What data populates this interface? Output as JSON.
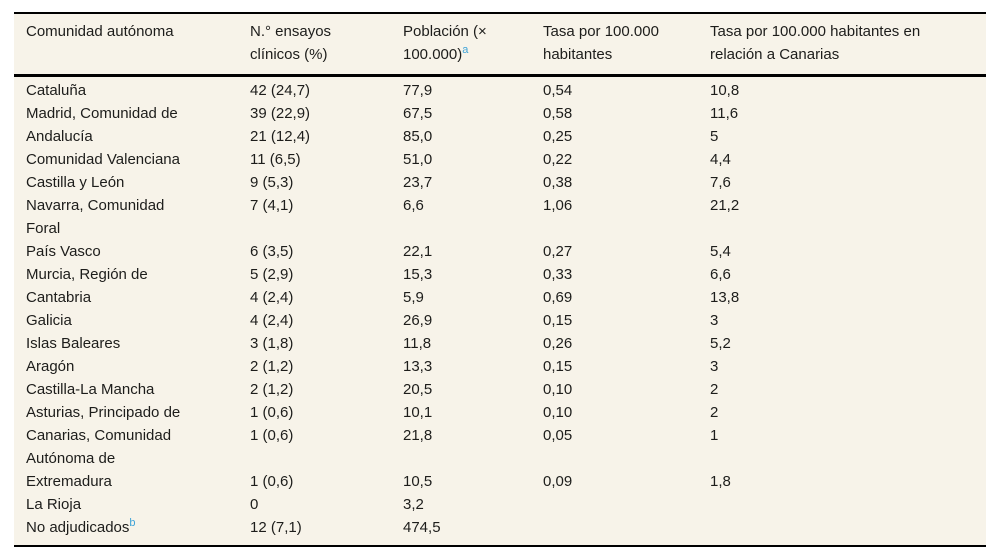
{
  "colors": {
    "page_background": "#ffffff",
    "table_background": "#f7f3e9",
    "text": "#1d1d1b",
    "rule": "#000000",
    "footnote_link": "#3fa3d7"
  },
  "table": {
    "columns": [
      {
        "label": "Comunidad autónoma"
      },
      {
        "label": "N.° ensayos\nclínicos (%)"
      },
      {
        "label": "Población (×\n100.000)",
        "footnote": "a"
      },
      {
        "label": "Tasa por 100.000\nhabitantes"
      },
      {
        "label": "Tasa por 100.000 habitantes en\nrelación a Canarias"
      }
    ],
    "rows": [
      {
        "name": "Cataluña",
        "trials": "42 (24,7)",
        "population": "77,9",
        "rate": "0,54",
        "rate_vs_canarias": "10,8"
      },
      {
        "name": "Madrid, Comunidad de",
        "trials": "39 (22,9)",
        "population": "67,5",
        "rate": "0,58",
        "rate_vs_canarias": "11,6"
      },
      {
        "name": "Andalucía",
        "trials": "21 (12,4)",
        "population": "85,0",
        "rate": "0,25",
        "rate_vs_canarias": "5"
      },
      {
        "name": "Comunidad Valenciana",
        "trials": "11 (6,5)",
        "population": "51,0",
        "rate": "0,22",
        "rate_vs_canarias": "4,4"
      },
      {
        "name": "Castilla y León",
        "trials": "9 (5,3)",
        "population": "23,7",
        "rate": "0,38",
        "rate_vs_canarias": "7,6"
      },
      {
        "name": "Navarra, Comunidad\nForal",
        "trials": "7 (4,1)",
        "population": "6,6",
        "rate": "1,06",
        "rate_vs_canarias": "21,2"
      },
      {
        "name": "País Vasco",
        "trials": "6 (3,5)",
        "population": "22,1",
        "rate": "0,27",
        "rate_vs_canarias": "5,4"
      },
      {
        "name": "Murcia, Región de",
        "trials": "5 (2,9)",
        "population": "15,3",
        "rate": "0,33",
        "rate_vs_canarias": "6,6"
      },
      {
        "name": "Cantabria",
        "trials": "4 (2,4)",
        "population": "5,9",
        "rate": "0,69",
        "rate_vs_canarias": "13,8"
      },
      {
        "name": "Galicia",
        "trials": "4 (2,4)",
        "population": "26,9",
        "rate": "0,15",
        "rate_vs_canarias": "3"
      },
      {
        "name": "Islas Baleares",
        "trials": "3 (1,8)",
        "population": "11,8",
        "rate": "0,26",
        "rate_vs_canarias": "5,2"
      },
      {
        "name": "Aragón",
        "trials": "2 (1,2)",
        "population": "13,3",
        "rate": "0,15",
        "rate_vs_canarias": "3"
      },
      {
        "name": "Castilla-La Mancha",
        "trials": "2 (1,2)",
        "population": "20,5",
        "rate": "0,10",
        "rate_vs_canarias": "2"
      },
      {
        "name": "Asturias, Principado de",
        "trials": "1 (0,6)",
        "population": "10,1",
        "rate": "0,10",
        "rate_vs_canarias": "2"
      },
      {
        "name": "Canarias, Comunidad\nAutónoma de",
        "trials": "1 (0,6)",
        "population": "21,8",
        "rate": "0,05",
        "rate_vs_canarias": "1"
      },
      {
        "name": "Extremadura",
        "trials": "1 (0,6)",
        "population": "10,5",
        "rate": "0,09",
        "rate_vs_canarias": "1,8"
      },
      {
        "name": "La Rioja",
        "trials": "0",
        "population": "3,2",
        "rate": "",
        "rate_vs_canarias": ""
      },
      {
        "name": "No adjudicados",
        "footnote": "b",
        "trials": "12 (7,1)",
        "population": "474,5",
        "rate": "",
        "rate_vs_canarias": ""
      }
    ]
  }
}
